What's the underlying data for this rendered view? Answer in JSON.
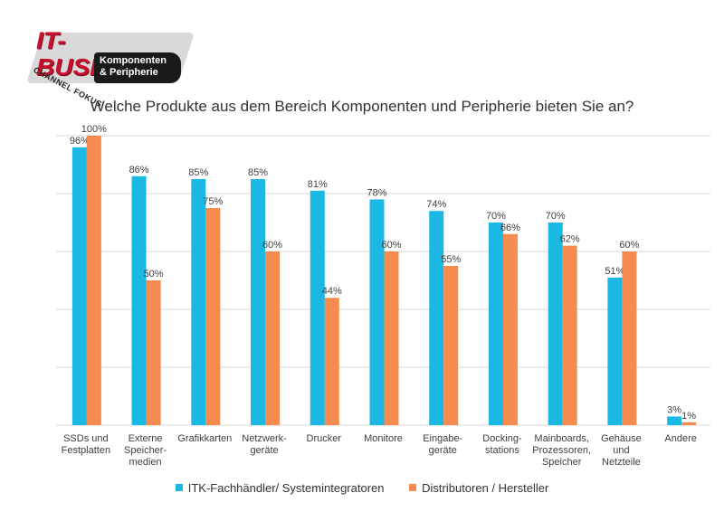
{
  "logo": {
    "brand": "IT-BUSINESS",
    "channel": "CHANNEL FOKUS",
    "sub_line1": "Komponenten",
    "sub_line2": "& Peripherie"
  },
  "colors": {
    "series1": "#1ab8e3",
    "series2": "#f68b4f",
    "grid": "#d9d9d9",
    "text": "#404040",
    "brand": "#c8102e"
  },
  "chart_data": {
    "type": "bar",
    "title": "Welche Produkte aus dem Bereich Komponenten und Peripherie bieten Sie an?",
    "categories": [
      [
        "SSDs und",
        "Festplatten"
      ],
      [
        "Externe",
        "Speicher-",
        "medien"
      ],
      [
        "Grafikkarten"
      ],
      [
        "Netzwerk-",
        "geräte"
      ],
      [
        "Drucker"
      ],
      [
        "Monitore"
      ],
      [
        "Eingabe-",
        "geräte"
      ],
      [
        "Docking-",
        "stations"
      ],
      [
        "Mainboards,",
        "Prozessoren,",
        "Speicher"
      ],
      [
        "Gehäuse",
        "und",
        "Netzteile"
      ],
      [
        "Andere"
      ]
    ],
    "series": [
      {
        "name": "ITK-Fachhändler/ Systemintegratoren",
        "values": [
          96,
          86,
          85,
          85,
          81,
          78,
          74,
          70,
          70,
          51,
          3
        ]
      },
      {
        "name": "Distributoren / Hersteller",
        "values": [
          100,
          50,
          75,
          60,
          44,
          60,
          55,
          66,
          62,
          60,
          1
        ]
      }
    ],
    "value_suffix": "%",
    "ylim": [
      0,
      100
    ],
    "grid": true,
    "legend_position": "bottom"
  }
}
